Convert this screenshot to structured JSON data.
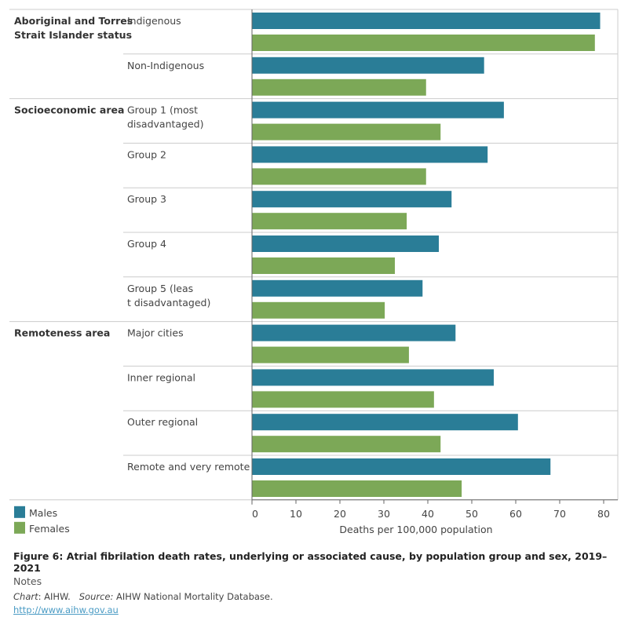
{
  "chart_data": {
    "type": "bar",
    "orientation": "horizontal",
    "title": "Figure 6: Atrial fibrilation death rates, underlying or associated cause, by population group and sex, 2019–2021",
    "xlabel": "Deaths per 100,000 population",
    "xlim": [
      0,
      80
    ],
    "xticks": [
      "0",
      "10",
      "20",
      "30",
      "40",
      "50",
      "60",
      "70",
      "80"
    ],
    "grid": false,
    "legend_placement": "bottom-left",
    "groups": [
      {
        "label": "Aboriginal and Torres Strait Islander status",
        "categories": [
          "Indigenous",
          "Non-Indigenous"
        ]
      },
      {
        "label": "Socioeconomic area",
        "categories": [
          "Group 1 (most disadvantaged)",
          "Group 2",
          "Group 3",
          "Group 4",
          "Group 5 (least disadvantaged)"
        ]
      },
      {
        "label": "Remoteness area",
        "categories": [
          "Major cities",
          "Inner regional",
          "Outer regional",
          "Remote and very remote"
        ]
      }
    ],
    "categories": [
      "Indigenous",
      "Non-Indigenous",
      "Group 1 (most disadvantaged)",
      "Group 2",
      "Group 3",
      "Group 4",
      "Group 5 (least disadvantaged)",
      "Major cities",
      "Inner regional",
      "Outer regional",
      "Remote and very remote"
    ],
    "series": [
      {
        "name": "Males",
        "color": "#2a7d97",
        "values": [
          79.2,
          52.8,
          57.3,
          53.6,
          45.4,
          42.5,
          38.8,
          46.3,
          55.0,
          60.5,
          67.9
        ]
      },
      {
        "name": "Females",
        "color": "#7ca857",
        "values": [
          78.0,
          39.6,
          42.9,
          39.6,
          35.2,
          32.5,
          30.2,
          35.7,
          41.4,
          42.9,
          47.7
        ]
      }
    ]
  },
  "notes": {
    "heading": "Notes",
    "chart_label": "Chart",
    "chart_value": ": AIHW.",
    "source_label": "Source:",
    "source_value": " AIHW National Mortality Database.",
    "link": "http://www.aihw.gov.au"
  }
}
